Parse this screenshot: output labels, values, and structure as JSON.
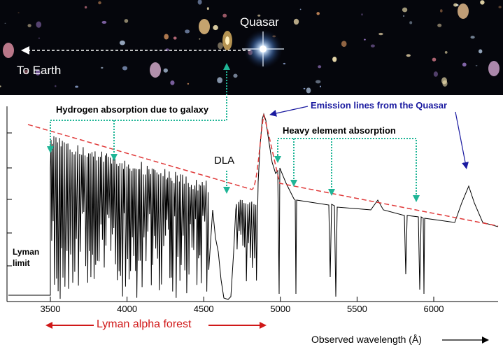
{
  "labels": {
    "quasar": "Quasar",
    "to_earth": "To Earth",
    "hydrogen_absorption": "Hydrogen absorption due to galaxy",
    "emission_lines": "Emission lines from the Quasar",
    "heavy_element": "Heavy element absorption",
    "dla": "DLA",
    "lyman_limit_line1": "Lyman",
    "lyman_limit_line2": "limit",
    "lyman_alpha_forest": "Lyman alpha forest",
    "observed_wavelength": "Observed wavelength (Å)"
  },
  "axis": {
    "x_ticks": [
      3500,
      4000,
      4500,
      5000,
      5500,
      6000
    ],
    "x_range": [
      3260,
      6380
    ]
  },
  "colors": {
    "space": "#05060c",
    "continuum": "#e03a3a",
    "spectrum": "#000000",
    "arrow_green": "#1fb596",
    "arrow_blue": "#1a1aa0",
    "forest_red": "#d01818"
  },
  "icons": {
    "quasar_star": "quasar-star-icon",
    "galaxy": "galaxy-icon"
  }
}
